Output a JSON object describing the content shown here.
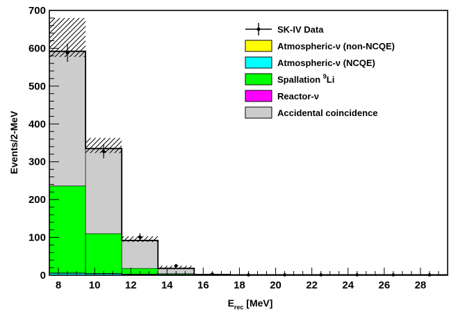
{
  "chart_data": {
    "type": "bar",
    "subtype": "stacked-histogram",
    "title": "",
    "xlabel_main": "E",
    "xlabel_sub": "rec",
    "xlabel_unit": " [MeV]",
    "ylabel": "Events/2-MeV",
    "xlim": [
      7.5,
      29.5
    ],
    "ylim": [
      0,
      700
    ],
    "x_ticks": [
      8,
      10,
      12,
      14,
      16,
      18,
      20,
      22,
      24,
      26,
      28
    ],
    "y_ticks": [
      0,
      100,
      200,
      300,
      400,
      500,
      600,
      700
    ],
    "bin_edges": [
      7.5,
      9.5,
      11.5,
      13.5,
      15.5,
      17.5,
      19.5,
      21.5,
      23.5,
      25.5,
      27.5,
      29.5
    ],
    "stack_order": [
      "reactor",
      "ncqe",
      "non_ncqe",
      "spallation",
      "accidental"
    ],
    "series": [
      {
        "key": "non_ncqe",
        "name": "Atmospheric-ν (non-NCQE)",
        "color": "#ffff00",
        "values": [
          1,
          1,
          1,
          1,
          1,
          1,
          1,
          1,
          1,
          1,
          1
        ]
      },
      {
        "key": "ncqe",
        "name": "Atmospheric-ν (NCQE)",
        "color": "#00ffff",
        "values": [
          5,
          4,
          2,
          1,
          1,
          0.5,
          0.5,
          0.5,
          0.5,
          0.5,
          0.5
        ]
      },
      {
        "key": "spallation",
        "name": "Spallation 9Li",
        "name_prefix": "Spallation ",
        "name_sup": "9",
        "name_suffix": "Li",
        "color": "#00ff00",
        "values": [
          230,
          105,
          15,
          2,
          0,
          0,
          0,
          0,
          0,
          0,
          0
        ]
      },
      {
        "key": "reactor",
        "name": "Reactor-ν",
        "color": "#ff00ff",
        "values": [
          0,
          0,
          0,
          0,
          0,
          0,
          0,
          0,
          0,
          0,
          0
        ]
      },
      {
        "key": "accidental",
        "name": "Accidental coincidence",
        "color": "#cccccc",
        "values": [
          355,
          225,
          74,
          14,
          0,
          0,
          0,
          0,
          0,
          0,
          0
        ]
      }
    ],
    "total_mc": [
      592,
      335,
      92,
      18,
      2,
      1,
      1,
      1,
      1,
      1,
      1
    ],
    "uncertainty_band": {
      "upper": [
        680,
        363,
        103,
        25,
        3,
        2,
        2,
        2,
        2,
        2,
        2
      ],
      "lower": [
        577,
        323,
        88,
        16,
        1,
        0,
        0,
        0,
        0,
        0,
        0
      ]
    },
    "data": {
      "name": "SK-IV Data",
      "x": [
        8.5,
        10.5,
        12.5,
        14.5,
        16.5,
        18.5,
        20.5,
        22.5,
        24.5,
        26.5,
        28.5
      ],
      "y": [
        588,
        327,
        101,
        25,
        3,
        1,
        1,
        1,
        1,
        1,
        1
      ],
      "yerr": [
        24,
        18,
        10,
        5,
        2,
        1,
        1,
        1,
        1,
        1,
        1
      ]
    },
    "legend_order": [
      "data",
      "non_ncqe",
      "ncqe",
      "spallation",
      "reactor",
      "accidental"
    ],
    "legend_position": "top-right",
    "grid": false
  }
}
